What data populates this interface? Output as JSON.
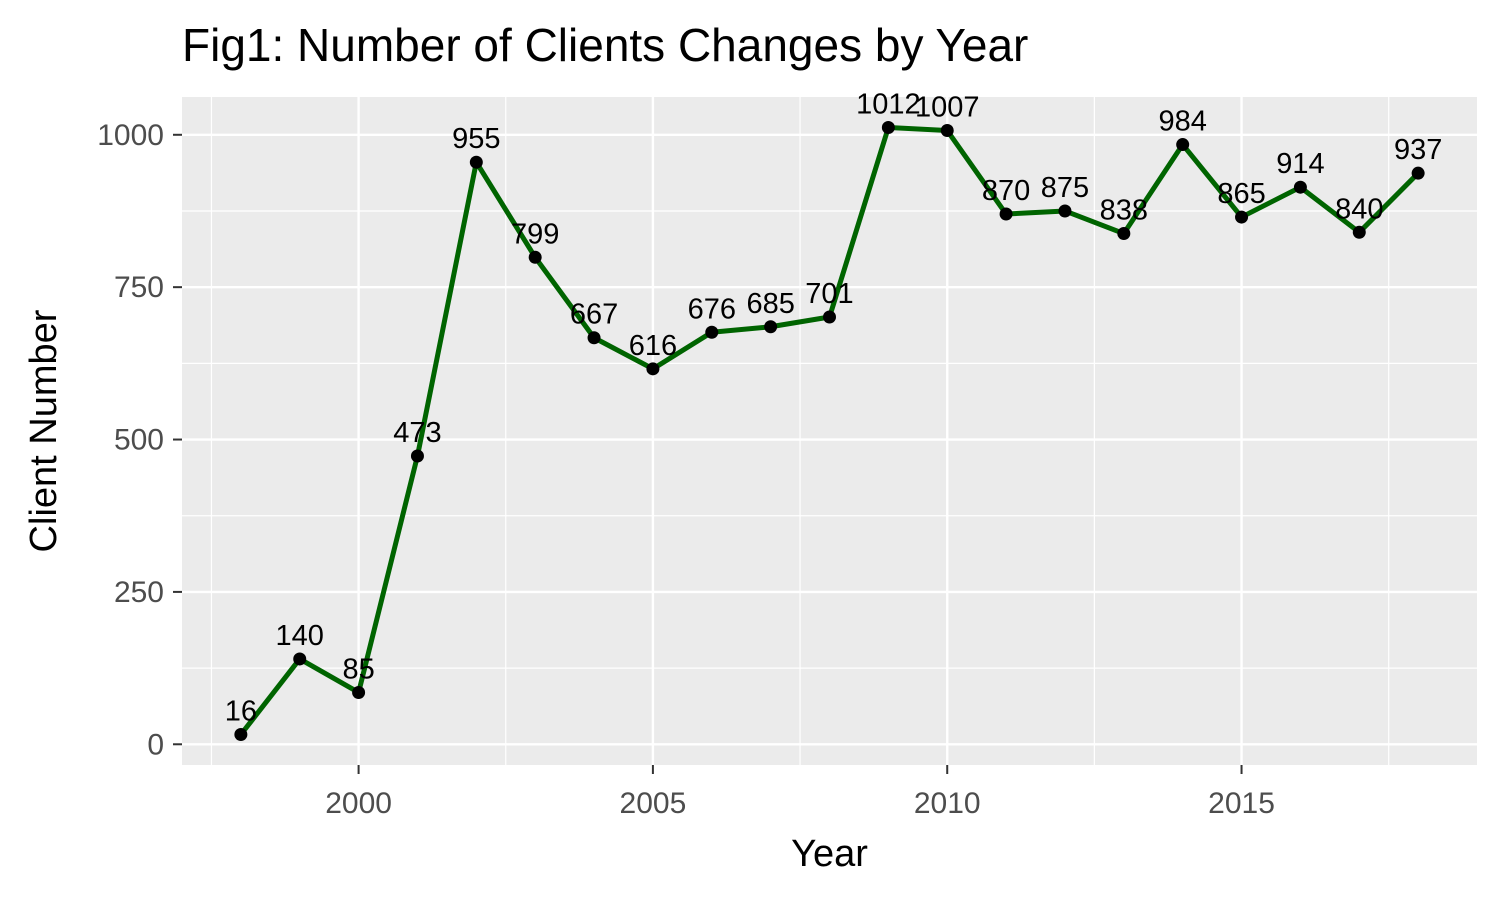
{
  "chart_data": {
    "type": "line",
    "title": "Fig1: Number of Clients Changes by Year",
    "xlabel": "Year",
    "ylabel": "Client Number",
    "x": [
      1998,
      1999,
      2000,
      2001,
      2002,
      2003,
      2004,
      2005,
      2006,
      2007,
      2008,
      2009,
      2010,
      2011,
      2012,
      2013,
      2014,
      2015,
      2016,
      2017,
      2018
    ],
    "values": [
      16,
      140,
      85,
      473,
      955,
      799,
      667,
      616,
      676,
      685,
      701,
      1012,
      1007,
      870,
      875,
      838,
      984,
      865,
      914,
      840,
      937
    ],
    "data_labels": [
      "16",
      "140",
      "85",
      "473",
      "955",
      "799",
      "667",
      "616",
      "676",
      "685",
      "701",
      "1012",
      "1007",
      "870",
      "875",
      "838",
      "984",
      "865",
      "914",
      "840",
      "937"
    ],
    "x_ticks": [
      2000,
      2005,
      2010,
      2015
    ],
    "x_tick_labels": [
      "2000",
      "2005",
      "2010",
      "2015"
    ],
    "y_ticks": [
      0,
      250,
      500,
      750,
      1000
    ],
    "y_tick_labels": [
      "0",
      "250",
      "500",
      "750",
      "1000"
    ],
    "xlim": [
      1997,
      2019
    ],
    "ylim": [
      -34,
      1062
    ],
    "grid": true,
    "line_color": "#006400",
    "point_color": "#000000",
    "panel_color": "#ebebeb",
    "grid_color": "#ffffff"
  }
}
